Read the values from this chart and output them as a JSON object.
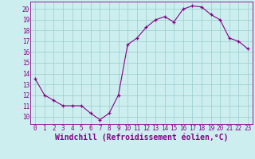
{
  "x": [
    0,
    1,
    2,
    3,
    4,
    5,
    6,
    7,
    8,
    9,
    10,
    11,
    12,
    13,
    14,
    15,
    16,
    17,
    18,
    19,
    20,
    21,
    22,
    23
  ],
  "y": [
    13.5,
    12.0,
    11.5,
    11.0,
    11.0,
    11.0,
    10.3,
    9.7,
    10.3,
    12.0,
    16.7,
    17.3,
    18.3,
    19.0,
    19.3,
    18.8,
    20.0,
    20.3,
    20.2,
    19.5,
    19.0,
    17.3,
    17.0,
    16.3
  ],
  "line_color": "#880088",
  "marker": "+",
  "marker_color": "#880088",
  "bg_color": "#cceeee",
  "grid_color": "#99cccc",
  "axis_color": "#880088",
  "xlabel": "Windchill (Refroidissement éolien,°C)",
  "xlabel_color": "#880088",
  "xlim": [
    -0.5,
    23.5
  ],
  "ylim": [
    9.3,
    20.7
  ],
  "yticks": [
    10,
    11,
    12,
    13,
    14,
    15,
    16,
    17,
    18,
    19,
    20
  ],
  "xticks": [
    0,
    1,
    2,
    3,
    4,
    5,
    6,
    7,
    8,
    9,
    10,
    11,
    12,
    13,
    14,
    15,
    16,
    17,
    18,
    19,
    20,
    21,
    22,
    23
  ],
  "tick_label_fontsize": 5.5,
  "xlabel_fontsize": 7.0
}
